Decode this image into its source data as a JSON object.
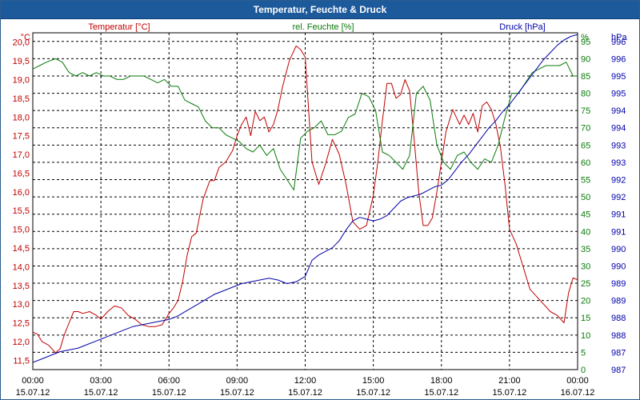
{
  "window": {
    "title": "Temperatur, Feuchte & Druck"
  },
  "chart_data": {
    "type": "line",
    "title": "Temperatur, Feuchte & Druck",
    "x_ticks": [
      {
        "time": "00:00",
        "date": "15.07.12"
      },
      {
        "time": "03:00",
        "date": "15.07.12"
      },
      {
        "time": "06:00",
        "date": "15.07.12"
      },
      {
        "time": "09:00",
        "date": "15.07.12"
      },
      {
        "time": "12:00",
        "date": "15.07.12"
      },
      {
        "time": "15:00",
        "date": "15.07.12"
      },
      {
        "time": "18:00",
        "date": "15.07.12"
      },
      {
        "time": "21:00",
        "date": "15.07.12"
      },
      {
        "time": "00:00",
        "date": "16.07.12"
      }
    ],
    "xlim_hours": [
      0,
      24
    ],
    "grid": true,
    "axes": {
      "temperature": {
        "label": "Temperatur [°C]",
        "unit": "°C",
        "side": "left",
        "color": "#c00000",
        "ylim": [
          11.25,
          20.25
        ],
        "ticks": [
          "11,5",
          "12,0",
          "12,5",
          "13,0",
          "13,5",
          "14,0",
          "14,5",
          "15,0",
          "15,5",
          "16,0",
          "16,5",
          "17,0",
          "17,5",
          "18,0",
          "18,5",
          "19,0",
          "19,5",
          "20,0"
        ]
      },
      "humidity": {
        "label": "rel. Feuchte [%]",
        "unit": "%",
        "side": "right",
        "color": "#0a7a0a",
        "ylim": [
          0,
          97.5
        ],
        "ticks": [
          "0",
          "5",
          "10",
          "15",
          "20",
          "25",
          "30",
          "35",
          "40",
          "45",
          "50",
          "55",
          "60",
          "65",
          "70",
          "75",
          "80",
          "85",
          "90",
          "95"
        ]
      },
      "pressure": {
        "label": "Druck [hPa]",
        "unit": "hPa",
        "side": "right",
        "color": "#0000aa",
        "ylim": [
          986.8,
          996.2
        ],
        "ticks": [
          "987",
          "987",
          "988",
          "988",
          "989",
          "989",
          "990",
          "990",
          "991",
          "991",
          "992",
          "992",
          "993",
          "993",
          "994",
          "994",
          "995",
          "995",
          "996",
          "996"
        ]
      }
    },
    "series": [
      {
        "name": "Temperatur",
        "axis": "temperature",
        "color": "#c00000",
        "x": [
          0,
          0.2,
          0.4,
          0.7,
          1.0,
          1.2,
          1.4,
          1.6,
          1.8,
          2.0,
          2.2,
          2.5,
          2.8,
          3.0,
          3.3,
          3.6,
          3.9,
          4.2,
          4.5,
          4.8,
          5.1,
          5.4,
          5.7,
          6.0,
          6.2,
          6.4,
          6.6,
          6.8,
          7.0,
          7.2,
          7.5,
          7.8,
          8.0,
          8.2,
          8.5,
          8.8,
          9.0,
          9.2,
          9.4,
          9.6,
          9.8,
          10.0,
          10.2,
          10.4,
          10.6,
          10.8,
          11.0,
          11.3,
          11.6,
          11.8,
          12.0,
          12.3,
          12.6,
          12.9,
          13.2,
          13.5,
          13.8,
          14.1,
          14.4,
          14.7,
          15.0,
          15.2,
          15.4,
          15.6,
          15.8,
          16.0,
          16.2,
          16.4,
          16.6,
          16.8,
          17.0,
          17.2,
          17.4,
          17.6,
          17.8,
          18.0,
          18.2,
          18.5,
          18.8,
          19.0,
          19.2,
          19.4,
          19.6,
          19.8,
          20.0,
          20.2,
          20.4,
          20.6,
          20.8,
          21.0,
          21.3,
          21.6,
          21.9,
          22.2,
          22.5,
          22.8,
          23.1,
          23.4,
          23.6,
          23.8,
          24.0
        ],
        "values": [
          12.25,
          12.2,
          12.0,
          11.9,
          11.7,
          11.8,
          12.2,
          12.5,
          12.8,
          12.8,
          12.75,
          12.8,
          12.7,
          12.6,
          12.8,
          12.95,
          12.9,
          12.7,
          12.6,
          12.45,
          12.4,
          12.4,
          12.45,
          12.75,
          12.9,
          13.1,
          13.6,
          14.3,
          14.8,
          14.9,
          15.8,
          16.3,
          16.3,
          16.65,
          16.8,
          17.1,
          17.5,
          17.8,
          18.0,
          17.5,
          18.15,
          17.9,
          18.0,
          17.6,
          17.8,
          18.2,
          18.8,
          19.5,
          19.9,
          19.8,
          19.6,
          16.8,
          16.2,
          16.75,
          17.4,
          17.0,
          16.2,
          15.2,
          15.0,
          15.1,
          15.9,
          16.8,
          17.9,
          18.9,
          18.9,
          18.5,
          18.6,
          19.0,
          18.7,
          17.4,
          16.0,
          15.1,
          15.1,
          15.3,
          16.0,
          16.8,
          17.6,
          18.2,
          17.8,
          18.05,
          17.8,
          18.1,
          17.6,
          18.3,
          18.4,
          18.2,
          17.8,
          17.2,
          16.2,
          15.0,
          14.6,
          14.0,
          13.4,
          13.2,
          13.0,
          12.8,
          12.7,
          12.5,
          13.3,
          13.7,
          13.65
        ]
      },
      {
        "name": "rel. Feuchte",
        "axis": "humidity",
        "color": "#0a7a0a",
        "x": [
          0,
          0.3,
          0.6,
          1.0,
          1.3,
          1.6,
          1.9,
          2.2,
          2.5,
          2.8,
          3.1,
          3.4,
          3.7,
          4.0,
          4.3,
          4.6,
          4.9,
          5.2,
          5.5,
          5.8,
          6.1,
          6.4,
          6.7,
          7.0,
          7.3,
          7.6,
          7.9,
          8.2,
          8.5,
          8.8,
          9.1,
          9.4,
          9.7,
          10.0,
          10.3,
          10.6,
          10.9,
          11.2,
          11.5,
          11.8,
          12.1,
          12.4,
          12.7,
          13.0,
          13.3,
          13.6,
          13.9,
          14.2,
          14.5,
          14.8,
          15.1,
          15.4,
          15.7,
          16.0,
          16.3,
          16.6,
          16.9,
          17.2,
          17.5,
          17.8,
          18.1,
          18.4,
          18.7,
          19.0,
          19.3,
          19.6,
          19.9,
          20.2,
          20.5,
          20.8,
          21.1,
          21.4,
          21.7,
          22.0,
          22.3,
          22.6,
          22.9,
          23.2,
          23.5,
          23.8,
          24.0
        ],
        "values": [
          87,
          88,
          89,
          90,
          89,
          86,
          85,
          86,
          85,
          86,
          85,
          85,
          84,
          84,
          85,
          85,
          85,
          84,
          83,
          84,
          82,
          82,
          78,
          77,
          76,
          72,
          70,
          70,
          68,
          67,
          66,
          64,
          63,
          65,
          62,
          64,
          58,
          55,
          52,
          67,
          69,
          70,
          72,
          68,
          68,
          69,
          73,
          74,
          80,
          79,
          75,
          63,
          62,
          60,
          58,
          62,
          80,
          82,
          78,
          65,
          60,
          58,
          62,
          63,
          60,
          58,
          61,
          60,
          65,
          73,
          80,
          80,
          83,
          86,
          87,
          88,
          88,
          88,
          89,
          85,
          85
        ]
      },
      {
        "name": "Druck",
        "axis": "pressure",
        "color": "#0000aa",
        "x": [
          0,
          0.4,
          0.8,
          1.2,
          1.6,
          2.0,
          2.4,
          2.8,
          3.2,
          3.6,
          4.0,
          4.4,
          4.8,
          5.2,
          5.6,
          6.0,
          6.4,
          6.8,
          7.2,
          7.6,
          8.0,
          8.4,
          8.8,
          9.2,
          9.6,
          10.0,
          10.4,
          10.8,
          11.2,
          11.6,
          12.0,
          12.3,
          12.6,
          12.9,
          13.2,
          13.5,
          13.8,
          14.1,
          14.4,
          14.7,
          15.0,
          15.3,
          15.6,
          15.9,
          16.2,
          16.5,
          16.8,
          17.1,
          17.4,
          17.7,
          18.0,
          18.3,
          18.6,
          18.9,
          19.2,
          19.5,
          19.8,
          20.1,
          20.4,
          20.7,
          21.0,
          21.3,
          21.6,
          21.9,
          22.2,
          22.5,
          22.8,
          23.1,
          23.4,
          23.7,
          24.0
        ],
        "values": [
          987.0,
          987.1,
          987.2,
          987.3,
          987.35,
          987.4,
          987.5,
          987.6,
          987.7,
          987.8,
          987.9,
          988.0,
          988.05,
          988.1,
          988.15,
          988.2,
          988.3,
          988.45,
          988.6,
          988.75,
          988.9,
          989.0,
          989.1,
          989.2,
          989.25,
          989.3,
          989.35,
          989.3,
          989.2,
          989.25,
          989.4,
          989.85,
          990.0,
          990.1,
          990.2,
          990.4,
          990.7,
          990.95,
          991.05,
          991.0,
          990.95,
          991.0,
          991.1,
          991.3,
          991.5,
          991.6,
          991.65,
          991.7,
          991.8,
          991.9,
          991.95,
          992.1,
          992.35,
          992.6,
          992.8,
          993.05,
          993.3,
          993.55,
          993.75,
          994.0,
          994.2,
          994.45,
          994.7,
          994.95,
          995.2,
          995.45,
          995.65,
          995.85,
          996.0,
          996.1,
          996.15
        ]
      }
    ]
  }
}
